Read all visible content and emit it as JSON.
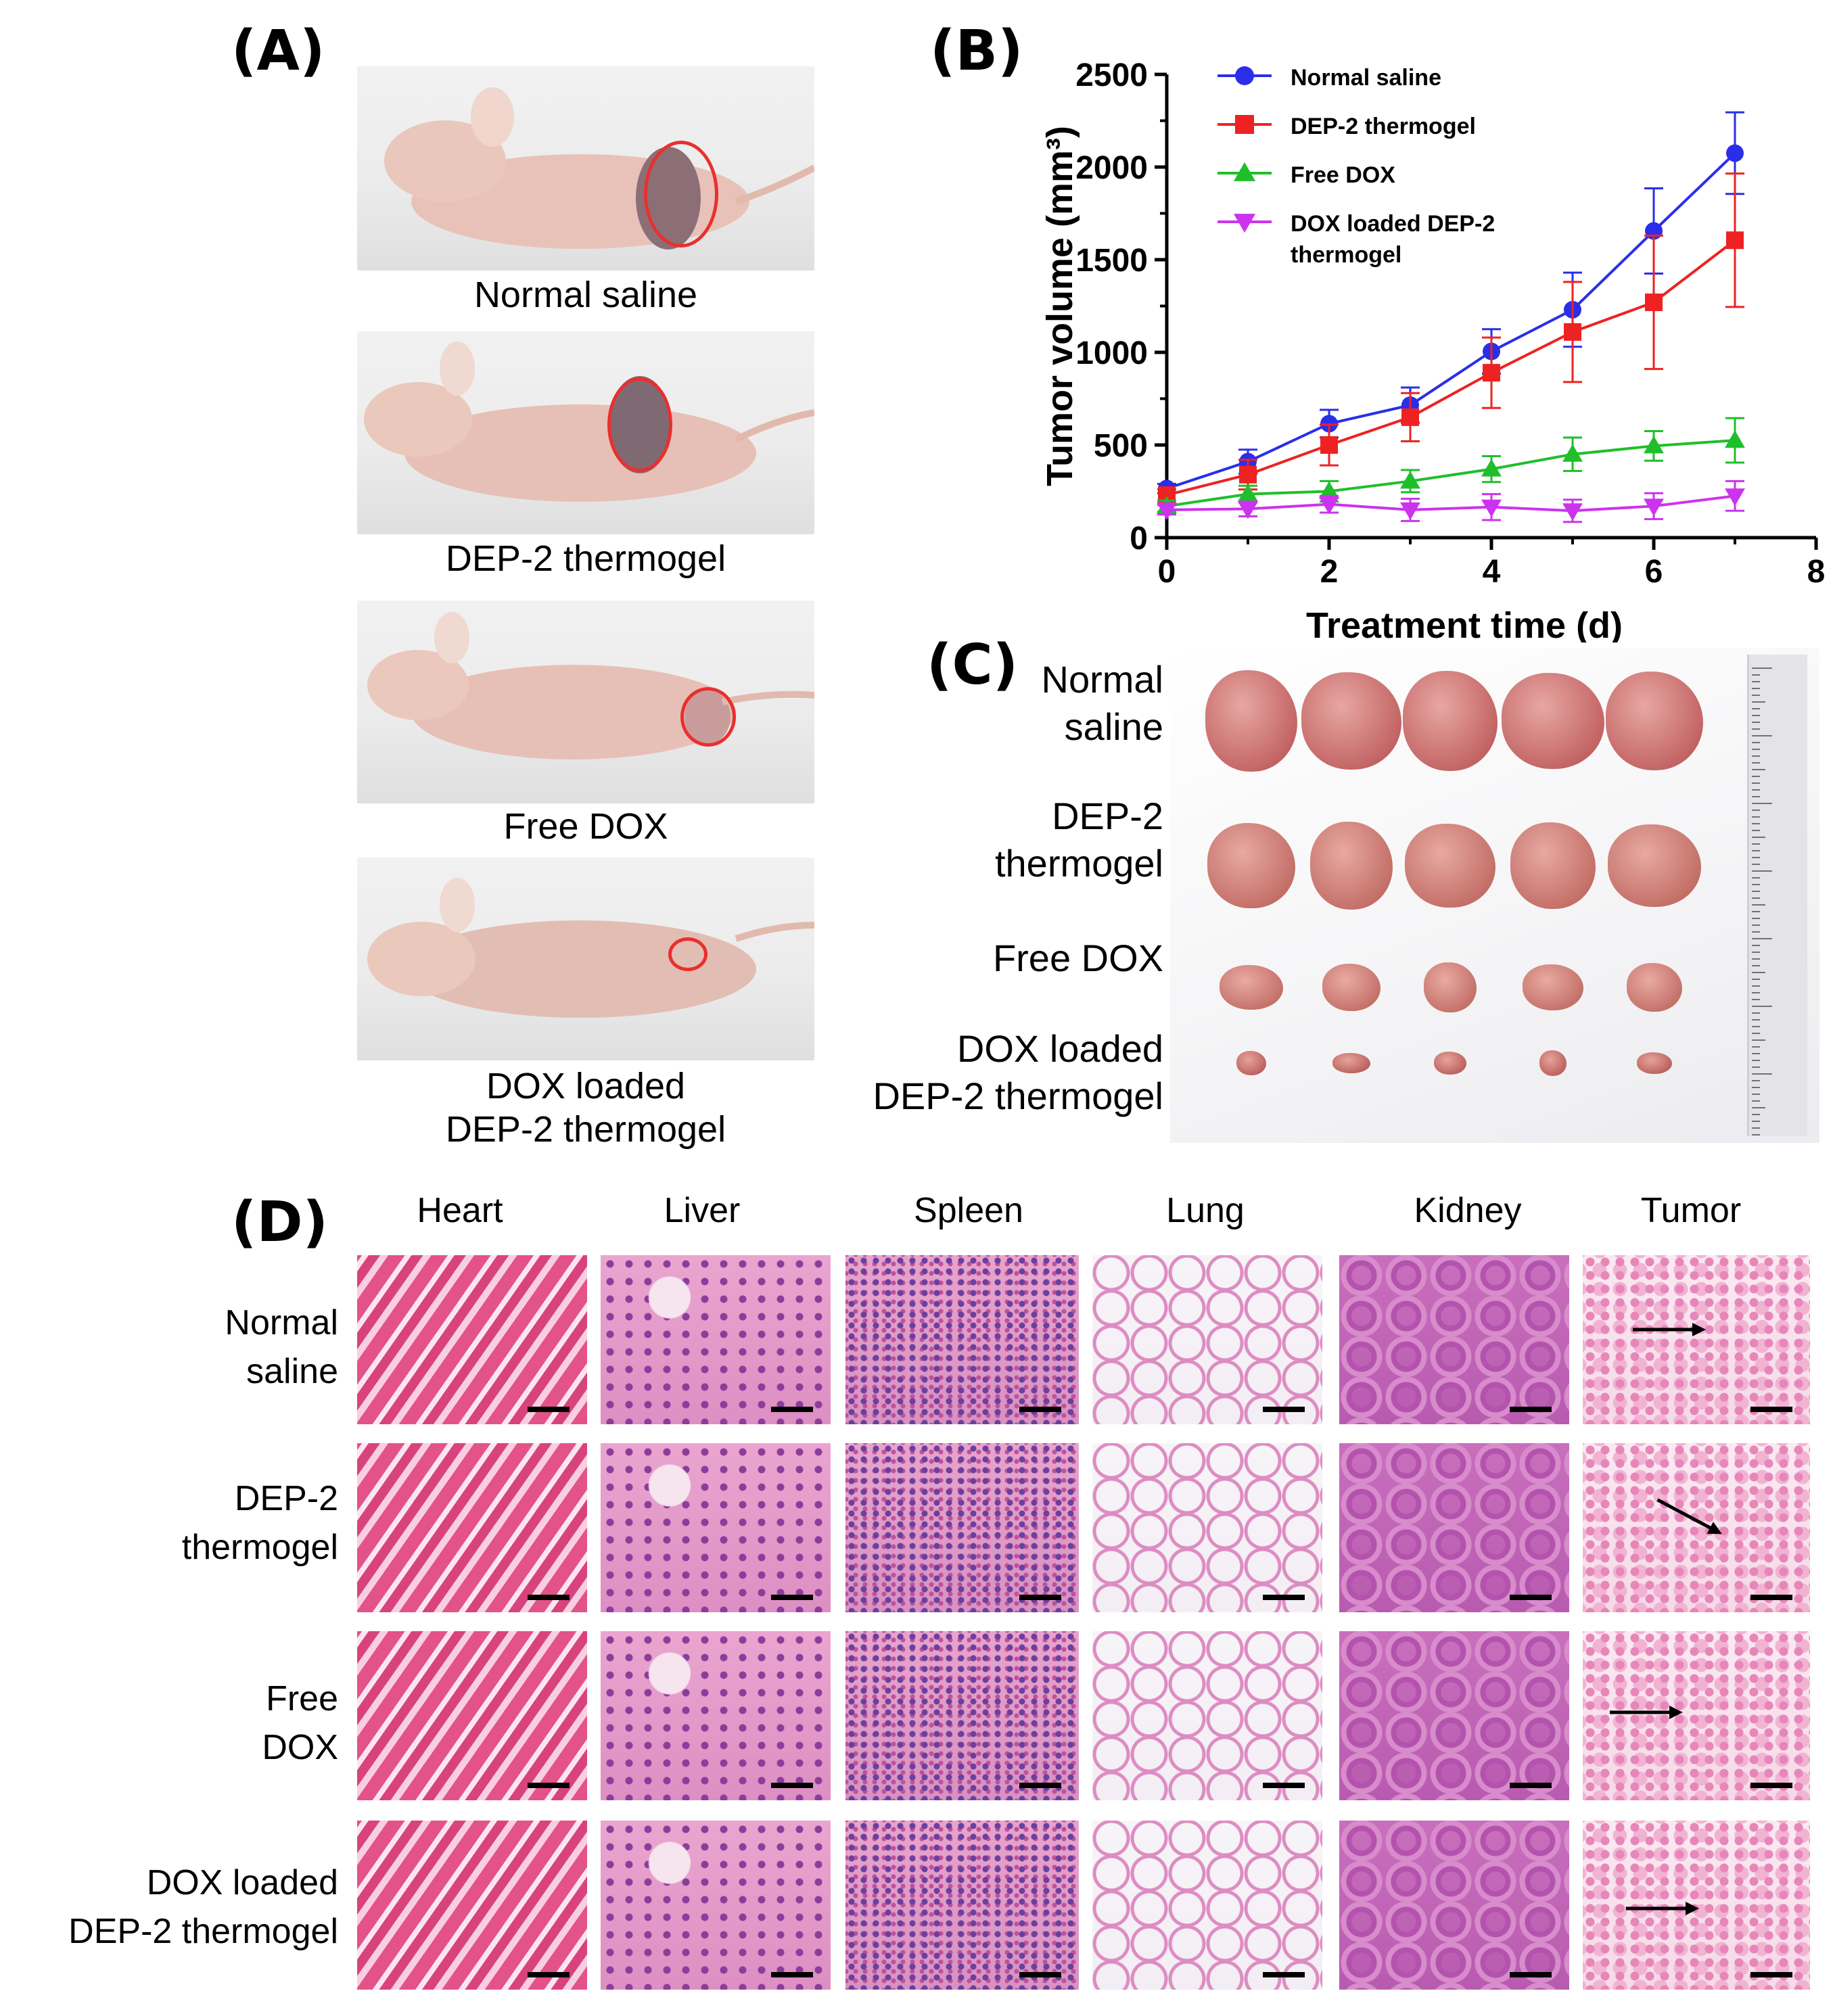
{
  "panels": {
    "a": "(A)",
    "b": "(B)",
    "c": "(C)",
    "d": "(D)"
  },
  "panel_a": {
    "captions": [
      "Normal saline",
      "DEP-2 thermogel",
      "Free DOX",
      "DOX loaded\nDEP-2 thermogel"
    ]
  },
  "chart_data": {
    "type": "line",
    "title": "",
    "xlabel": "Treatment time (d)",
    "ylabel": "Tumor volume (mm³)",
    "xlim": [
      0,
      8
    ],
    "ylim": [
      0,
      2500
    ],
    "xticks": [
      0,
      2,
      4,
      6,
      8
    ],
    "yticks": [
      0,
      500,
      1000,
      1500,
      2000,
      2500
    ],
    "legend_position": "top-left",
    "x": [
      0,
      1,
      2,
      3,
      4,
      5,
      6,
      7
    ],
    "series": [
      {
        "name": "Normal saline",
        "color": "#2a2ee8",
        "marker": "circle",
        "values": [
          265,
          410,
          615,
          715,
          1005,
          1230,
          1655,
          2075
        ],
        "errors": [
          25,
          65,
          75,
          95,
          120,
          200,
          230,
          220
        ]
      },
      {
        "name": "DEP-2 thermogel",
        "color": "#ee2222",
        "marker": "square",
        "values": [
          230,
          340,
          500,
          650,
          890,
          1110,
          1270,
          1605
        ],
        "errors": [
          30,
          80,
          110,
          130,
          190,
          270,
          360,
          360
        ]
      },
      {
        "name": "Free DOX",
        "color": "#1fbf2a",
        "marker": "triangle-up",
        "values": [
          170,
          235,
          250,
          305,
          370,
          450,
          495,
          525
        ],
        "errors": [
          30,
          45,
          55,
          60,
          70,
          90,
          80,
          120
        ]
      },
      {
        "name": "DOX loaded DEP-2 thermogel",
        "color": "#cc33ee",
        "marker": "triangle-down",
        "values": [
          150,
          155,
          180,
          150,
          165,
          145,
          170,
          225
        ],
        "errors": [
          25,
          40,
          45,
          60,
          70,
          60,
          70,
          80
        ]
      }
    ]
  },
  "panel_c": {
    "row_labels": [
      "Normal\nsaline",
      "DEP-2\nthermogel",
      "Free DOX",
      "DOX loaded\nDEP-2 thermogel"
    ]
  },
  "panel_d": {
    "columns": [
      "Heart",
      "Liver",
      "Spleen",
      "Lung",
      "Kidney",
      "Tumor"
    ],
    "rows": [
      "Normal\nsaline",
      "DEP-2\nthermogel",
      "Free\nDOX",
      "DOX loaded\nDEP-2 thermogel"
    ]
  }
}
